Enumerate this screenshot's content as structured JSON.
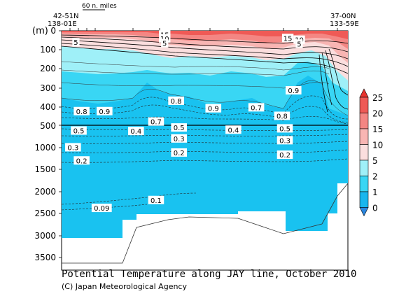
{
  "chart_data": {
    "type": "heatmap",
    "title": "Potential Temperature along JAY line, October 2010",
    "credit": "(C) Japan Meteorological Agency",
    "scale_bar_label": "60 n. miles",
    "left_station": [
      "42-51N",
      "138-01E"
    ],
    "right_station": [
      "37-00N",
      "133-59E"
    ],
    "y_unit_label": "(m)",
    "y_ticks_upper": [
      "0",
      "100",
      "200",
      "300",
      "400",
      "500"
    ],
    "y_ticks_lower": [
      "1000",
      "1500",
      "2000",
      "2500",
      "3000",
      "3500"
    ],
    "y_axis_break_at": 500,
    "colorbar": {
      "ticks": [
        "25",
        "20",
        "15",
        "10",
        "5",
        "2",
        "1",
        "0"
      ],
      "colors": [
        "#e8332e",
        "#ef5a56",
        "#f48683",
        "#f8b5b3",
        "#fbdede",
        "#9ff0f8",
        "#39d6f4",
        "#19b6ee",
        "#2a86e0"
      ]
    },
    "contour_labels": [
      {
        "text": "15",
        "x_frac": 0.36,
        "depth": 20
      },
      {
        "text": "10",
        "x_frac": 0.36,
        "depth": 40
      },
      {
        "text": "5",
        "x_frac": 0.36,
        "depth": 65
      },
      {
        "text": "5",
        "x_frac": 0.05,
        "depth": 60
      },
      {
        "text": "15",
        "x_frac": 0.79,
        "depth": 38
      },
      {
        "text": "10",
        "x_frac": 0.83,
        "depth": 47
      },
      {
        "text": "5",
        "x_frac": 0.83,
        "depth": 68
      },
      {
        "text": "0.8",
        "x_frac": 0.07,
        "depth": 425
      },
      {
        "text": "0.9",
        "x_frac": 0.15,
        "depth": 425
      },
      {
        "text": "0.8",
        "x_frac": 0.4,
        "depth": 370
      },
      {
        "text": "0.9",
        "x_frac": 0.53,
        "depth": 410
      },
      {
        "text": "0.7",
        "x_frac": 0.68,
        "depth": 405
      },
      {
        "text": "0.9",
        "x_frac": 0.81,
        "depth": 315
      },
      {
        "text": "0.8",
        "x_frac": 0.77,
        "depth": 450
      },
      {
        "text": "0.7",
        "x_frac": 0.33,
        "depth": 480
      },
      {
        "text": "0.5",
        "x_frac": 0.06,
        "depth": 620
      },
      {
        "text": "0.4",
        "x_frac": 0.26,
        "depth": 630
      },
      {
        "text": "0.5",
        "x_frac": 0.41,
        "depth": 550
      },
      {
        "text": "0.3",
        "x_frac": 0.41,
        "depth": 800
      },
      {
        "text": "0.4",
        "x_frac": 0.6,
        "depth": 600
      },
      {
        "text": "0.5",
        "x_frac": 0.78,
        "depth": 570
      },
      {
        "text": "0.3",
        "x_frac": 0.78,
        "depth": 840
      },
      {
        "text": "0.3",
        "x_frac": 0.04,
        "depth": 1000
      },
      {
        "text": "0.2",
        "x_frac": 0.41,
        "depth": 1120
      },
      {
        "text": "0.2",
        "x_frac": 0.78,
        "depth": 1170
      },
      {
        "text": "0.2",
        "x_frac": 0.07,
        "depth": 1300
      },
      {
        "text": "0.1",
        "x_frac": 0.33,
        "depth": 2200
      },
      {
        "text": "0.09",
        "x_frac": 0.14,
        "depth": 2380
      }
    ],
    "xlabel": "",
    "ylabel": "",
    "grid": false
  }
}
